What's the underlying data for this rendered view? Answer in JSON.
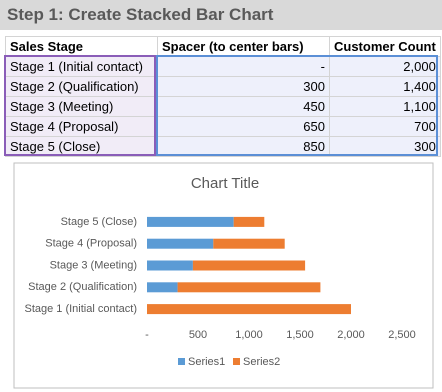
{
  "header": {
    "title": "Step 1: Create Stacked Bar Chart"
  },
  "table": {
    "columns": [
      "Sales Stage",
      "Spacer (to center bars)",
      "Customer Count"
    ],
    "rows": [
      [
        "Stage 1 (Initial contact)",
        "-",
        "2,000"
      ],
      [
        "Stage 2 (Qualification)",
        "300",
        "1,400"
      ],
      [
        "Stage 3 (Meeting)",
        "450",
        "1,100"
      ],
      [
        "Stage 4 (Proposal)",
        "650",
        "700"
      ],
      [
        "Stage 5 (Close)",
        "850",
        "300"
      ]
    ]
  },
  "chart_data": {
    "type": "bar",
    "orientation": "horizontal",
    "stacked": true,
    "title": "Chart Title",
    "categories": [
      "Stage 1 (Initial contact)",
      "Stage 2 (Qualification)",
      "Stage 3 (Meeting)",
      "Stage 4 (Proposal)",
      "Stage 5 (Close)"
    ],
    "series": [
      {
        "name": "Series1",
        "color": "#5b9bd5",
        "values": [
          0,
          300,
          450,
          650,
          850
        ]
      },
      {
        "name": "Series2",
        "color": "#ed7d31",
        "values": [
          2000,
          1400,
          1100,
          700,
          300
        ]
      }
    ],
    "xlim": [
      0,
      2500
    ],
    "xticks": [
      {
        "value": 0,
        "label": "-"
      },
      500,
      {
        "value": 1000,
        "label": "1,000"
      },
      {
        "value": 1500,
        "label": "1,500"
      },
      {
        "value": 2000,
        "label": "2,000"
      },
      {
        "value": 2500,
        "label": "2,500"
      }
    ],
    "legend": "bottom"
  }
}
